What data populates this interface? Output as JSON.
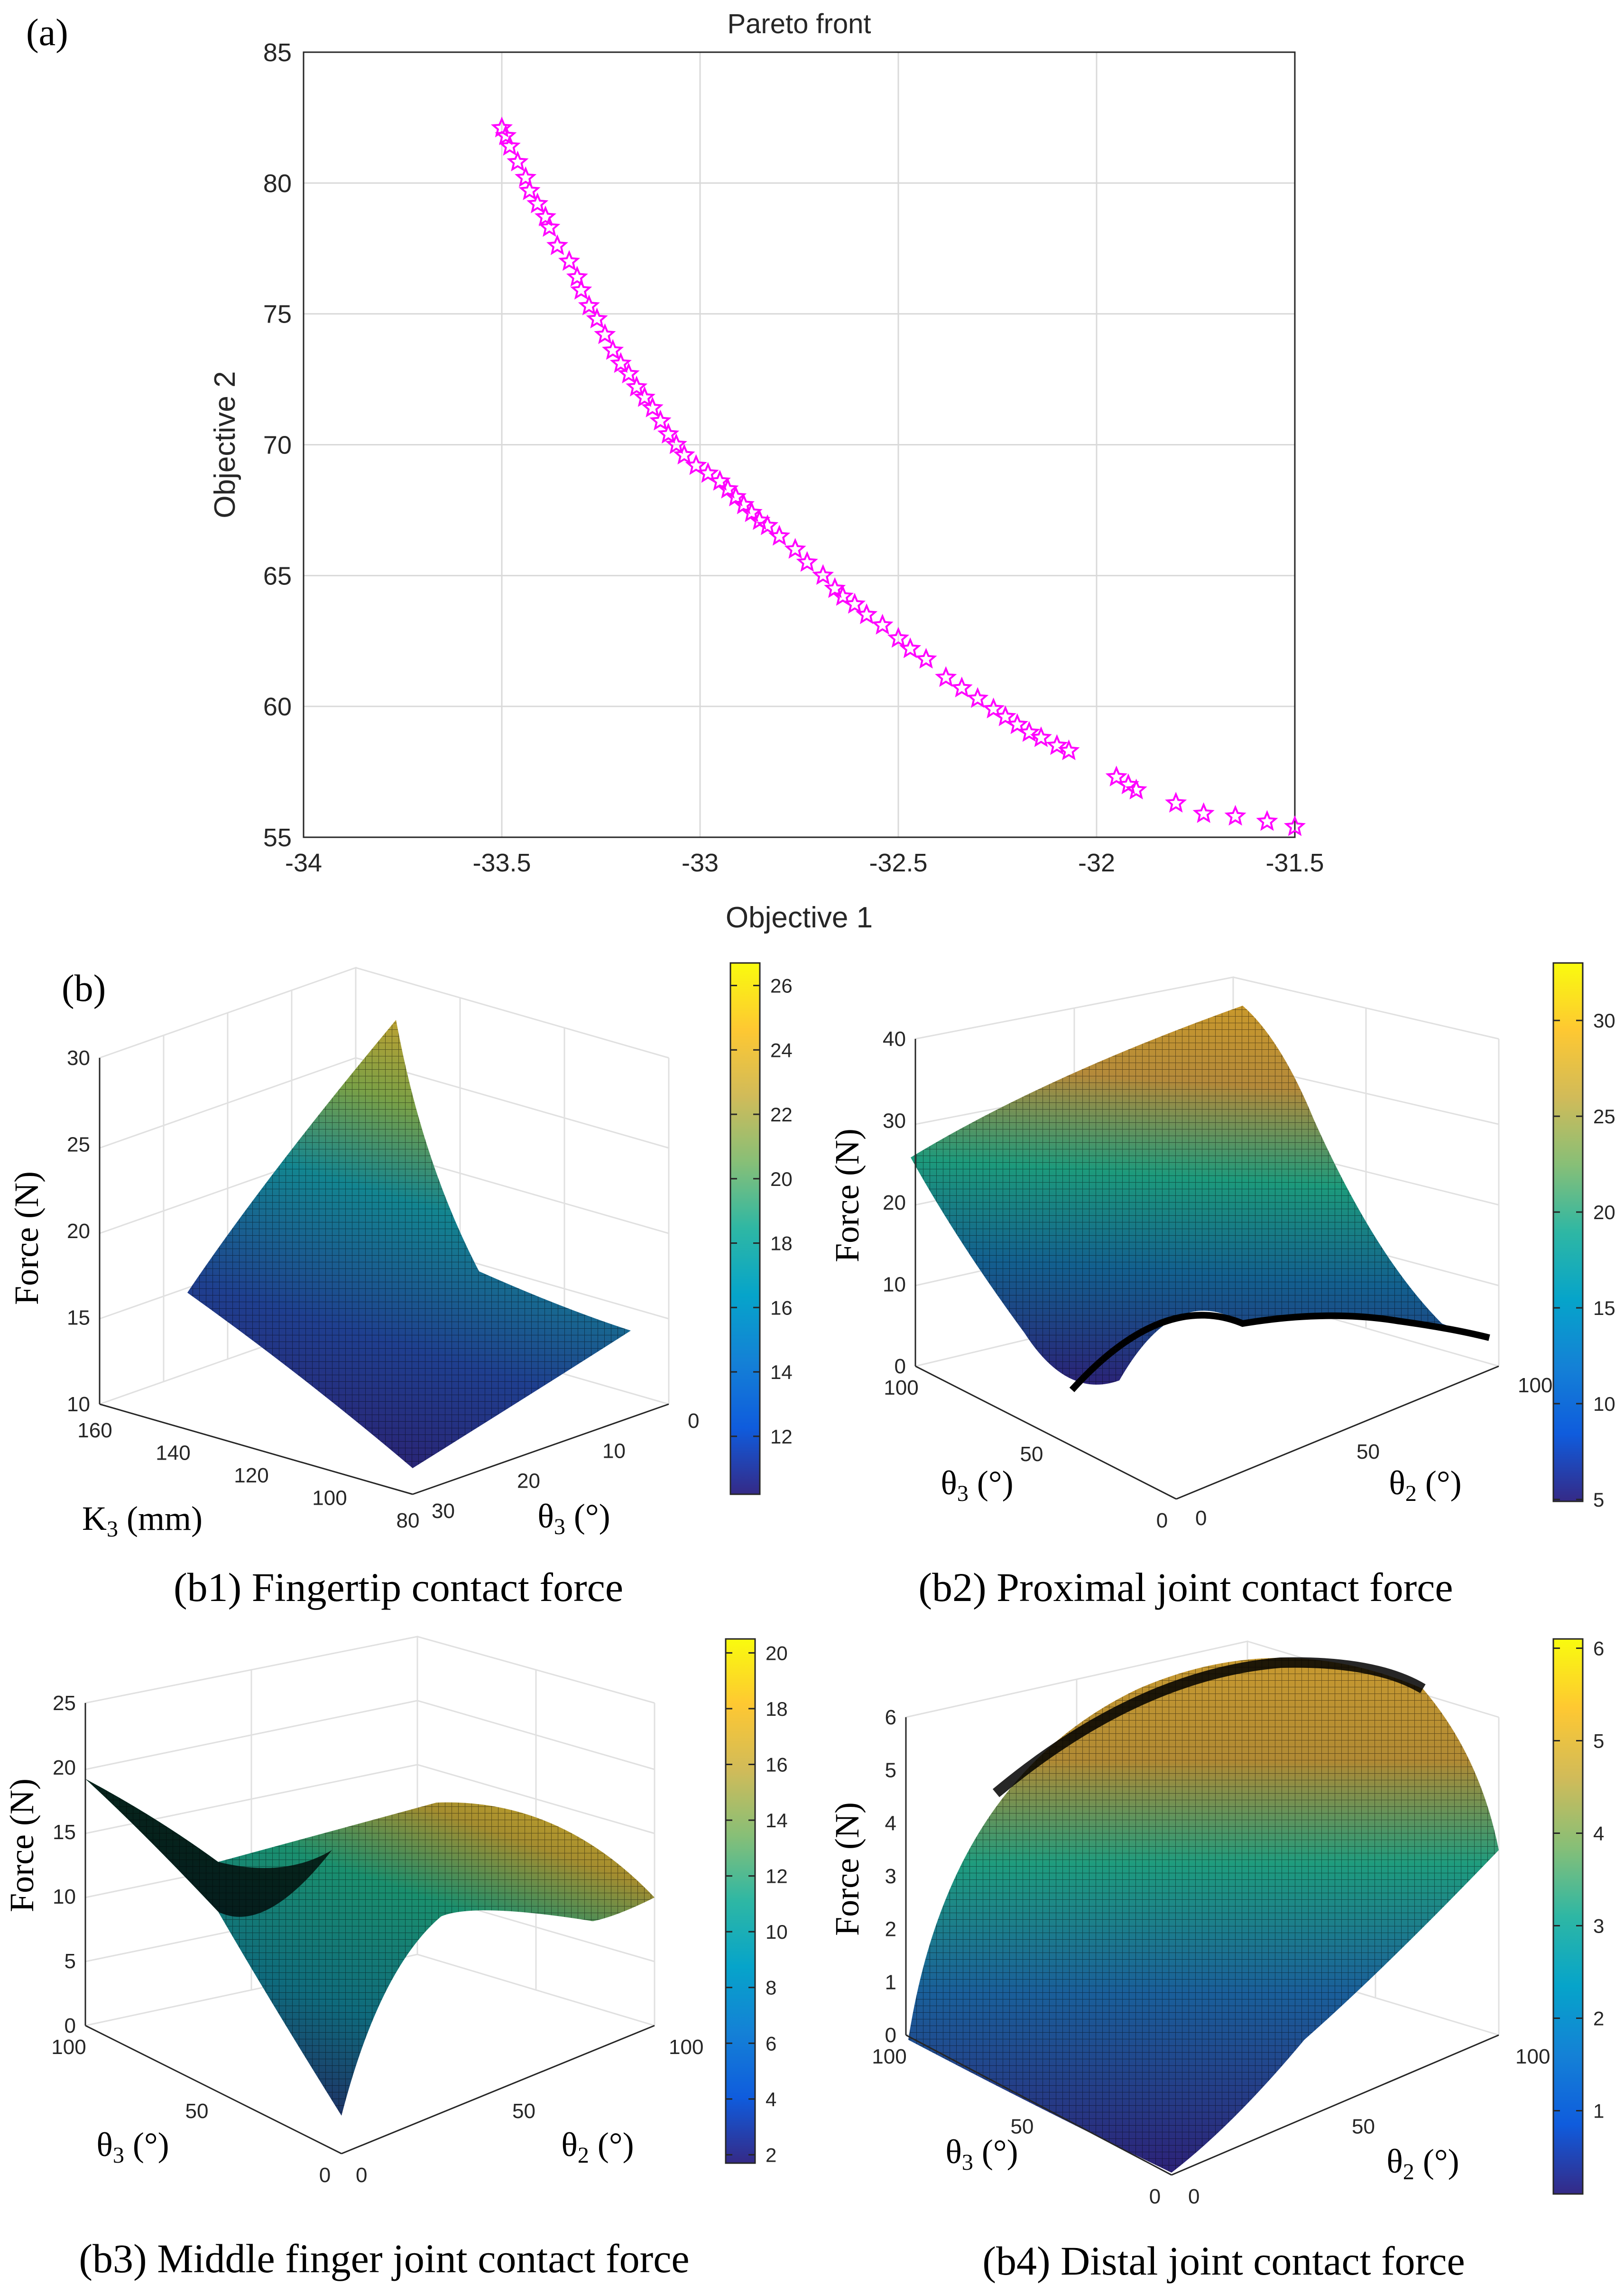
{
  "labels": {
    "panel_a": "(a)",
    "panel_b": "(b)",
    "force": "Force (N)",
    "theta3": "θ",
    "theta2": "θ",
    "sub3": "3",
    "sub2": "2",
    "deg": " (°)",
    "k3": "K",
    "k3_unit": " (mm)"
  },
  "colors": {
    "marker": "#ff00ff",
    "grid": "#d9d9d9",
    "parula": [
      "#352a87",
      "#0f5cdd",
      "#1481d6",
      "#06a4ca",
      "#2eb7a4",
      "#87bf77",
      "#d1bb59",
      "#fec832",
      "#f9fb0e"
    ]
  },
  "chart_data": [
    {
      "id": "a",
      "type": "scatter",
      "title": "Pareto front",
      "xlabel": "Objective 1",
      "ylabel": "Objective 2",
      "xlim": [
        -34,
        -31.5
      ],
      "ylim": [
        55,
        85
      ],
      "xticks": [
        "-34",
        "-33.5",
        "-33",
        "-32.5",
        "-32",
        "-31.5"
      ],
      "yticks": [
        "55",
        "60",
        "65",
        "70",
        "75",
        "80",
        "85"
      ],
      "x": [
        -33.5,
        -33.49,
        -33.48,
        -33.46,
        -33.44,
        -33.43,
        -33.41,
        -33.39,
        -33.38,
        -33.36,
        -33.33,
        -33.31,
        -33.3,
        -33.28,
        -33.26,
        -33.24,
        -33.22,
        -33.2,
        -33.18,
        -33.16,
        -33.14,
        -33.12,
        -33.1,
        -33.08,
        -33.06,
        -33.04,
        -33.01,
        -32.98,
        -32.95,
        -32.93,
        -32.91,
        -32.89,
        -32.87,
        -32.85,
        -32.83,
        -32.8,
        -32.76,
        -32.73,
        -32.69,
        -32.66,
        -32.64,
        -32.61,
        -32.58,
        -32.54,
        -32.5,
        -32.47,
        -32.43,
        -32.38,
        -32.34,
        -32.3,
        -32.26,
        -32.23,
        -32.2,
        -32.17,
        -32.14,
        -32.1,
        -32.07,
        -31.95,
        -31.92,
        -31.9,
        -31.8,
        -31.73,
        -31.65,
        -31.57,
        -31.5
      ],
      "y": [
        82.1,
        81.8,
        81.4,
        80.8,
        80.2,
        79.7,
        79.2,
        78.7,
        78.3,
        77.6,
        77.0,
        76.4,
        75.9,
        75.3,
        74.8,
        74.2,
        73.6,
        73.1,
        72.7,
        72.2,
        71.8,
        71.4,
        70.9,
        70.4,
        70.0,
        69.6,
        69.2,
        68.9,
        68.6,
        68.3,
        68.0,
        67.7,
        67.4,
        67.1,
        66.9,
        66.5,
        66.0,
        65.5,
        65.0,
        64.5,
        64.2,
        63.9,
        63.5,
        63.1,
        62.6,
        62.2,
        61.8,
        61.1,
        60.7,
        60.3,
        59.9,
        59.6,
        59.3,
        59.0,
        58.8,
        58.5,
        58.3,
        57.3,
        57.0,
        56.8,
        56.3,
        55.9,
        55.8,
        55.6,
        55.4
      ]
    },
    {
      "id": "b1",
      "type": "surface",
      "caption": "(b1) Fingertip contact force",
      "zticks": [
        "10",
        "15",
        "20",
        "25",
        "30"
      ],
      "xticks": [
        "80",
        "100",
        "120",
        "140",
        "160"
      ],
      "yticks": [
        "0",
        "10",
        "20",
        "30"
      ],
      "colorbar": [
        "12",
        "14",
        "16",
        "18",
        "20",
        "22",
        "24",
        "26"
      ],
      "colorbar_range": [
        10.2,
        26.7
      ]
    },
    {
      "id": "b2",
      "type": "surface",
      "caption": "(b2) Proximal joint contact force",
      "zticks": [
        "0",
        "10",
        "20",
        "30",
        "40"
      ],
      "xticks": [
        "0",
        "50",
        "100"
      ],
      "yticks": [
        "0",
        "50",
        "100"
      ],
      "colorbar": [
        "5",
        "10",
        "15",
        "20",
        "25",
        "30"
      ],
      "colorbar_range": [
        4.9,
        33.0
      ]
    },
    {
      "id": "b3",
      "type": "surface",
      "caption": "(b3) Middle finger joint contact force",
      "zticks": [
        "0",
        "5",
        "10",
        "15",
        "20",
        "25"
      ],
      "xticks": [
        "0",
        "50",
        "100"
      ],
      "yticks": [
        "0",
        "50",
        "100"
      ],
      "colorbar": [
        "2",
        "4",
        "6",
        "8",
        "10",
        "12",
        "14",
        "16",
        "18",
        "20"
      ],
      "colorbar_range": [
        1.7,
        20.5
      ]
    },
    {
      "id": "b4",
      "type": "surface",
      "caption": "(b4) Distal joint contact force",
      "zticks": [
        "0",
        "1",
        "2",
        "3",
        "4",
        "5",
        "6"
      ],
      "xticks": [
        "0",
        "50",
        "100"
      ],
      "yticks": [
        "0",
        "50",
        "100"
      ],
      "colorbar": [
        "1",
        "2",
        "3",
        "4",
        "5",
        "6"
      ],
      "colorbar_range": [
        0.1,
        6.1
      ]
    }
  ]
}
